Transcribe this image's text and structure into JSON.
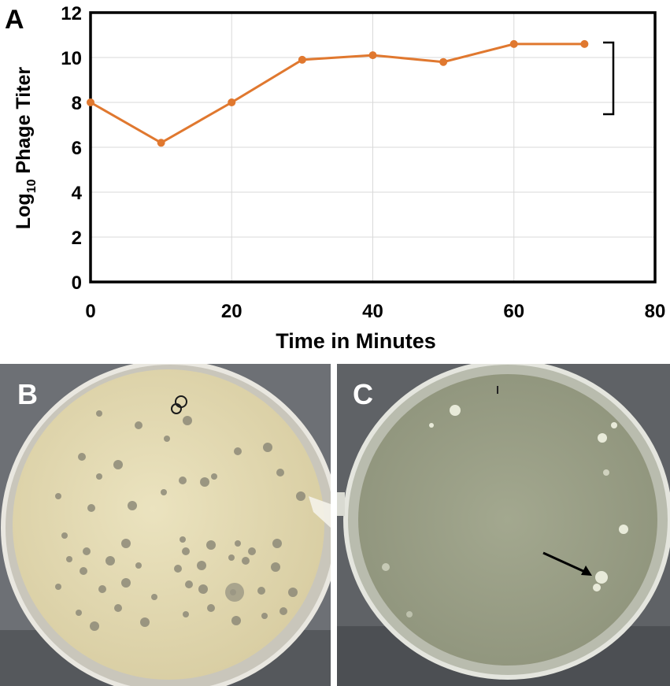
{
  "figure": {
    "panels": {
      "a": "A",
      "b": "B",
      "c": "C"
    }
  },
  "chart_data": {
    "type": "line",
    "x": [
      0,
      10,
      20,
      30,
      40,
      50,
      60,
      70
    ],
    "series": [
      {
        "values": [
          8.0,
          6.2,
          8.0,
          9.9,
          10.1,
          9.8,
          10.6,
          10.6
        ],
        "color": "#e0782f"
      }
    ],
    "xlabel": "Time in Minutes",
    "ylabel_main": "Log",
    "ylabel_sub": "10",
    "ylabel_rest": " Phage Titer",
    "xlim": [
      0,
      80
    ],
    "ylim": [
      0,
      12
    ],
    "xticks": [
      0,
      20,
      40,
      60,
      80
    ],
    "yticks": [
      0,
      2,
      4,
      6,
      8,
      10,
      12
    ],
    "grid": true,
    "annotations": [
      "bracket spanning the 8–10.6 plateau"
    ]
  },
  "photos": {
    "b_background": "#6d7075",
    "b_agar": "#e6ddb5",
    "c_background": "#5f6266",
    "c_agar": "#9a9f86"
  }
}
